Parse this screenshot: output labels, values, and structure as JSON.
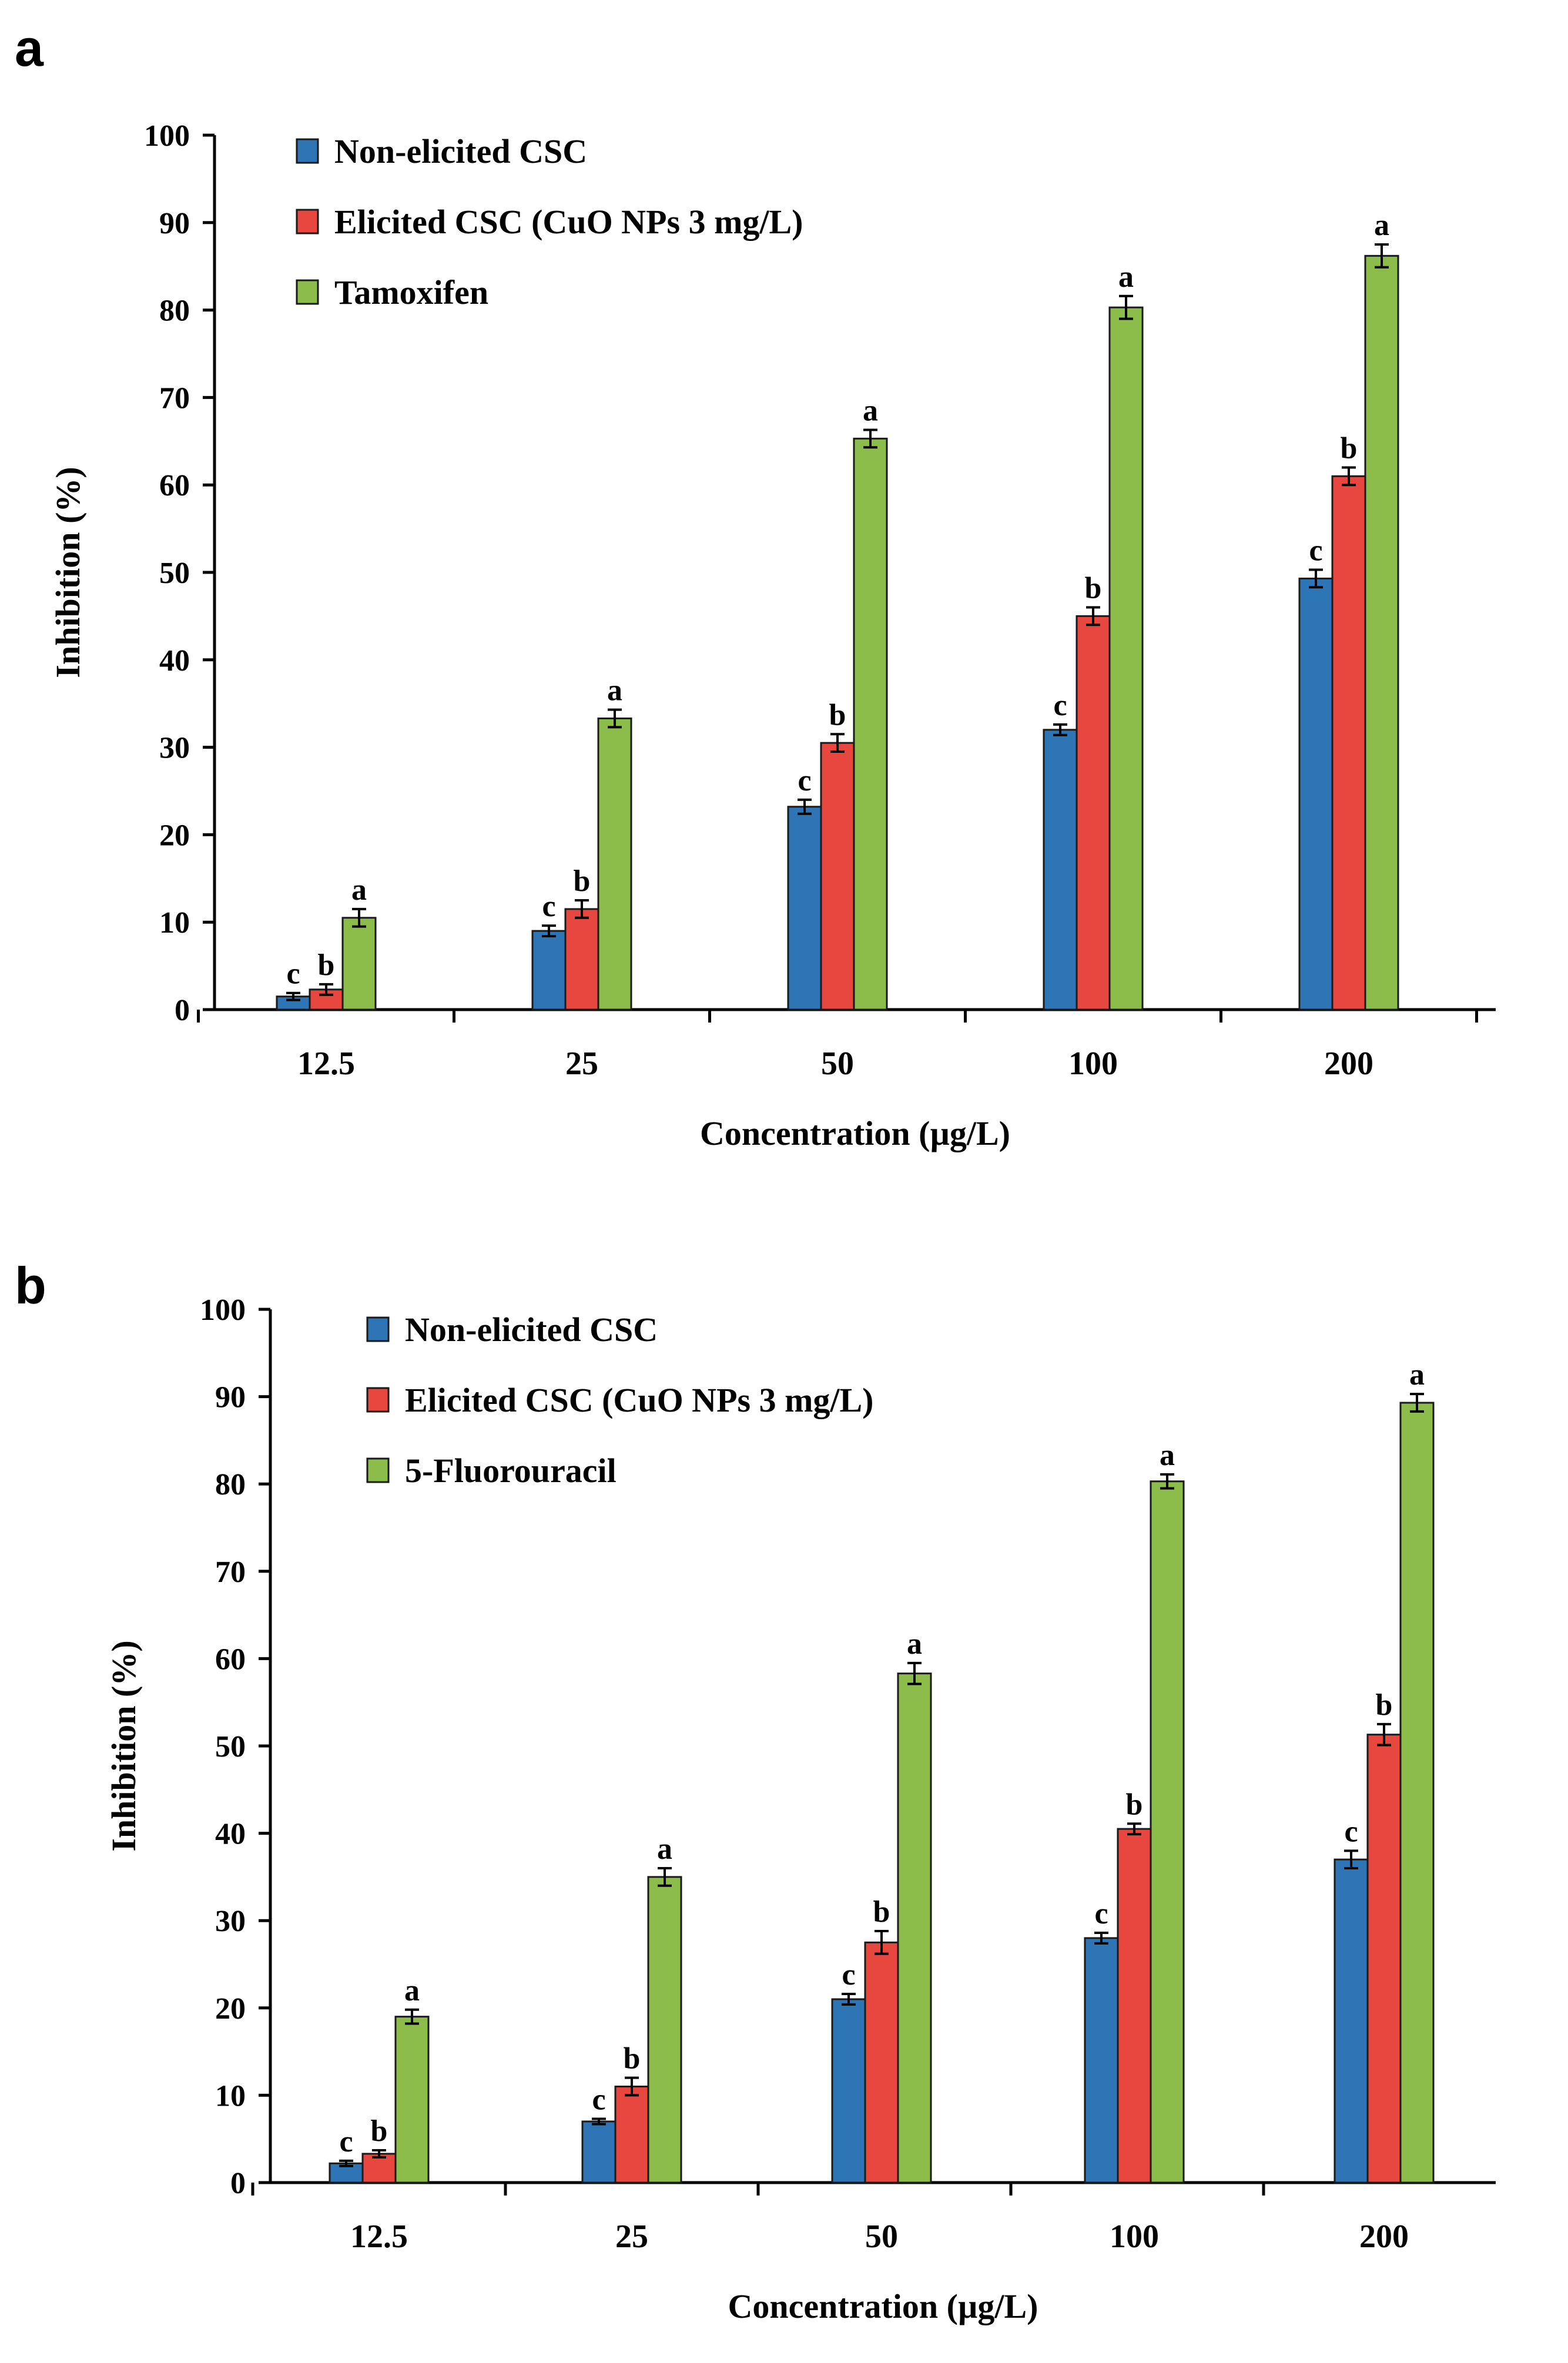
{
  "chart_data": [
    {
      "type": "bar",
      "panel_label": "a",
      "title": "",
      "xlabel": "Concentration  (µg/L)",
      "ylabel": "Inhibition  (%)",
      "ylim": [
        0,
        100
      ],
      "yticks": [
        "0",
        "10",
        "20",
        "30",
        "40",
        "50",
        "60",
        "70",
        "80",
        "90",
        "100"
      ],
      "categories": [
        "12.5",
        "25",
        "50",
        "100",
        "200"
      ],
      "legend_position": "top-left",
      "grid": false,
      "series": [
        {
          "name": "Non-elicited CSC",
          "color": "#2e75b6",
          "values": [
            1.5,
            9.0,
            23.2,
            32.0,
            49.3
          ],
          "errors": [
            0.4,
            0.6,
            0.8,
            0.6,
            1.0
          ],
          "letters": [
            "c",
            "c",
            "c",
            "c",
            "c"
          ]
        },
        {
          "name": "Elicited CSC (CuO NPs 3 mg/L)",
          "color": "#e8473f",
          "values": [
            2.3,
            11.5,
            30.5,
            45.0,
            61.0
          ],
          "errors": [
            0.6,
            1.0,
            1.0,
            1.0,
            1.0
          ],
          "letters": [
            "b",
            "b",
            "b",
            "b",
            "b"
          ]
        },
        {
          "name": "Tamoxifen",
          "color": "#8cbd4b",
          "values": [
            10.5,
            33.3,
            65.3,
            80.3,
            86.2
          ],
          "errors": [
            1.0,
            1.0,
            1.0,
            1.3,
            1.3
          ],
          "letters": [
            "a",
            "a",
            "a",
            "a",
            "a"
          ]
        }
      ]
    },
    {
      "type": "bar",
      "panel_label": "b",
      "title": "",
      "xlabel": "Concentration  (µg/L)",
      "ylabel": "Inhibition  (%)",
      "ylim": [
        0,
        100
      ],
      "yticks": [
        "0",
        "10",
        "20",
        "30",
        "40",
        "50",
        "60",
        "70",
        "80",
        "90",
        "100"
      ],
      "categories": [
        "12.5",
        "25",
        "50",
        "100",
        "200"
      ],
      "legend_position": "top-left",
      "grid": false,
      "series": [
        {
          "name": "Non-elicited CSC",
          "color": "#2e75b6",
          "values": [
            2.2,
            7.0,
            21.0,
            28.0,
            37.0
          ],
          "errors": [
            0.3,
            0.3,
            0.6,
            0.6,
            1.0
          ],
          "letters": [
            "c",
            "c",
            "c",
            "c",
            "c"
          ]
        },
        {
          "name": "Elicited CSC (CuO NPs 3 mg/L)",
          "color": "#e8473f",
          "values": [
            3.3,
            11.0,
            27.5,
            40.5,
            51.3
          ],
          "errors": [
            0.4,
            1.0,
            1.3,
            0.6,
            1.2
          ],
          "letters": [
            "b",
            "b",
            "b",
            "b",
            "b"
          ]
        },
        {
          "name": "5-Fluorouracil",
          "color": "#8cbd4b",
          "values": [
            19.0,
            35.0,
            58.3,
            80.3,
            89.3
          ],
          "errors": [
            0.8,
            1.0,
            1.2,
            0.8,
            1.0
          ],
          "letters": [
            "a",
            "a",
            "a",
            "a",
            "a"
          ]
        }
      ]
    }
  ]
}
